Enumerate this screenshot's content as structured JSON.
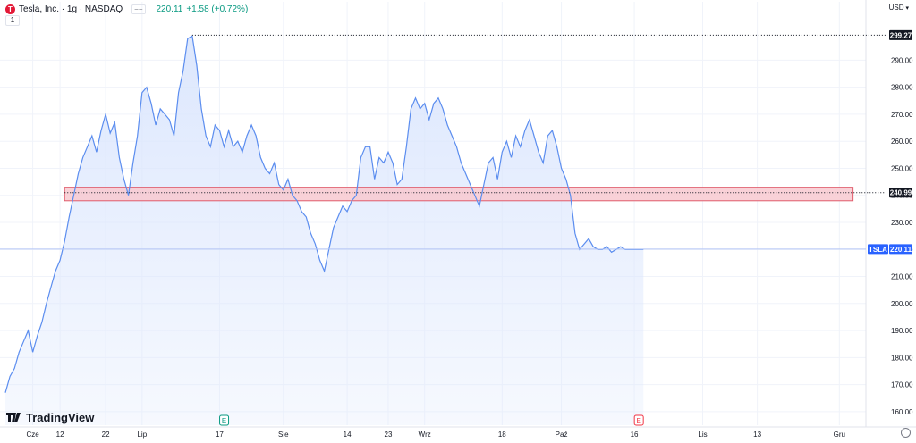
{
  "header": {
    "symbol_title": "Tesla, Inc. · 1g · NASDAQ",
    "logo_letter": "T",
    "button_label": "−−",
    "last_price": "220.11",
    "change": "+1.58 (+0.72%)",
    "indicator_count": "1",
    "currency": "USD"
  },
  "brand": {
    "name": "TradingView"
  },
  "colors": {
    "line": "#5b8def",
    "fill": "#dbe6fd",
    "zone_fill": "#f8c9d0",
    "zone_border": "#e05b6b",
    "price_label": "#2962ff",
    "up": "#089981"
  },
  "chart_data": {
    "type": "area",
    "title": "",
    "ylim": [
      155,
      305
    ],
    "y_ticks": [
      160,
      170,
      180,
      190,
      200,
      210,
      220,
      230,
      240,
      250,
      260,
      270,
      280,
      290
    ],
    "y_tick_labels": [
      "160.00",
      "170.00",
      "180.00",
      "190.00",
      "200.00",
      "210.00",
      "220.00",
      "230.00",
      "240.00",
      "250.00",
      "260.00",
      "270.00",
      "280.00",
      "290.00"
    ],
    "x_tick_labels": [
      {
        "label": "Cze",
        "day": 6
      },
      {
        "label": "12",
        "day": 12
      },
      {
        "label": "22",
        "day": 22
      },
      {
        "label": "Lip",
        "day": 30
      },
      {
        "label": "17",
        "day": 47
      },
      {
        "label": "Sie",
        "day": 61
      },
      {
        "label": "14",
        "day": 75
      },
      {
        "label": "23",
        "day": 84
      },
      {
        "label": "Wrz",
        "day": 92
      },
      {
        "label": "18",
        "day": 109
      },
      {
        "label": "Paź",
        "day": 122
      },
      {
        "label": "16",
        "day": 138
      },
      {
        "label": "Lis",
        "day": 153
      },
      {
        "label": "13",
        "day": 165
      },
      {
        "label": "Gru",
        "day": 183
      }
    ],
    "x_range_days": [
      0,
      190
    ],
    "series": [
      {
        "x": [
          0,
          1,
          2,
          3,
          4,
          5,
          6,
          7,
          8,
          9,
          10,
          11,
          12,
          13,
          14,
          15,
          16,
          17,
          18,
          19,
          20,
          21,
          22,
          23,
          24,
          25,
          26,
          27,
          28,
          29,
          30,
          31,
          32,
          33,
          34,
          35,
          36,
          37,
          38,
          39,
          40,
          41,
          42,
          43,
          44,
          45,
          46,
          47,
          48,
          49,
          50,
          51,
          52,
          53,
          54,
          55,
          56,
          57,
          58,
          59,
          60,
          61,
          62,
          63,
          64,
          65,
          66,
          67,
          68,
          69,
          70,
          71,
          72,
          73,
          74,
          75,
          76,
          77,
          78,
          79,
          80,
          81,
          82,
          83,
          84,
          85,
          86,
          87,
          88,
          89,
          90,
          91,
          92,
          93,
          94,
          95,
          96,
          97,
          98,
          99,
          100,
          101,
          102,
          103,
          104,
          105,
          106,
          107,
          108,
          109,
          110,
          111,
          112,
          113,
          114,
          115,
          116,
          117,
          118,
          119,
          120,
          121,
          122,
          123,
          124,
          125,
          126,
          127,
          128,
          129,
          130,
          131,
          132,
          133,
          134,
          135,
          136,
          137,
          138,
          139,
          140
        ],
        "y": [
          167,
          173,
          176,
          182,
          186,
          190,
          182,
          188,
          193,
          200,
          206,
          212,
          216,
          223,
          232,
          240,
          248,
          254,
          258,
          262,
          256,
          264,
          270,
          263,
          267,
          254,
          246,
          240,
          252,
          262,
          278,
          280,
          274,
          266,
          272,
          270,
          268,
          262,
          278,
          286,
          298,
          299,
          288,
          272,
          262,
          258,
          266,
          264,
          258,
          264,
          258,
          260,
          256,
          262,
          266,
          262,
          254,
          250,
          248,
          252,
          244,
          242,
          246,
          240,
          238,
          234,
          232,
          226,
          222,
          216,
          212,
          220,
          228,
          232,
          236,
          234,
          238,
          240,
          254,
          258,
          258,
          246,
          254,
          252,
          256,
          252,
          244,
          246,
          258,
          272,
          276,
          272,
          274,
          268,
          274,
          276,
          272,
          266,
          262,
          258,
          252,
          248,
          244,
          240,
          236,
          244,
          252,
          254,
          246,
          256,
          260,
          254,
          262,
          258,
          264,
          268,
          262,
          256,
          252,
          262,
          264,
          258,
          250,
          246,
          240,
          226,
          220,
          222,
          224,
          221,
          220,
          220,
          221,
          219,
          220,
          221,
          220,
          220,
          220,
          220,
          220
        ]
      }
    ],
    "last_value": 220.11,
    "last_label": "220.11",
    "symbol_label": "TSLA",
    "max_value": 299.27,
    "max_label": "299.27",
    "zone": {
      "top": 243,
      "bottom": 238,
      "day_start": 13,
      "day_end": 186
    },
    "level_value": 240.99,
    "level_label": "240.99",
    "markers": [
      {
        "label": "E",
        "day": 48,
        "color": "#089981"
      },
      {
        "label": "E",
        "day": 139,
        "color": "#f23645"
      }
    ]
  }
}
